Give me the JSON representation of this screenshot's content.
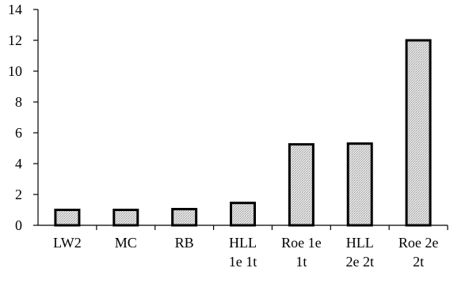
{
  "chart_data": {
    "type": "bar",
    "categories": [
      [
        "LW2"
      ],
      [
        "MC"
      ],
      [
        "RB"
      ],
      [
        "HLL",
        "1e 1t"
      ],
      [
        "Roe 1e",
        "1t"
      ],
      [
        "HLL",
        "2e 2t"
      ],
      [
        "Roe 2e",
        "2t"
      ]
    ],
    "values": [
      1.0,
      1.0,
      1.05,
      1.45,
      5.25,
      5.3,
      12.0
    ],
    "ylim": [
      0,
      14
    ],
    "yticks": [
      0,
      2,
      4,
      6,
      8,
      10,
      12,
      14
    ],
    "title": "",
    "xlabel": "",
    "ylabel": "",
    "grid": false,
    "legend": "none",
    "colors": {
      "bar_fill": "#d9d9d9",
      "bar_stroke": "#000000",
      "axis": "#000000"
    }
  }
}
